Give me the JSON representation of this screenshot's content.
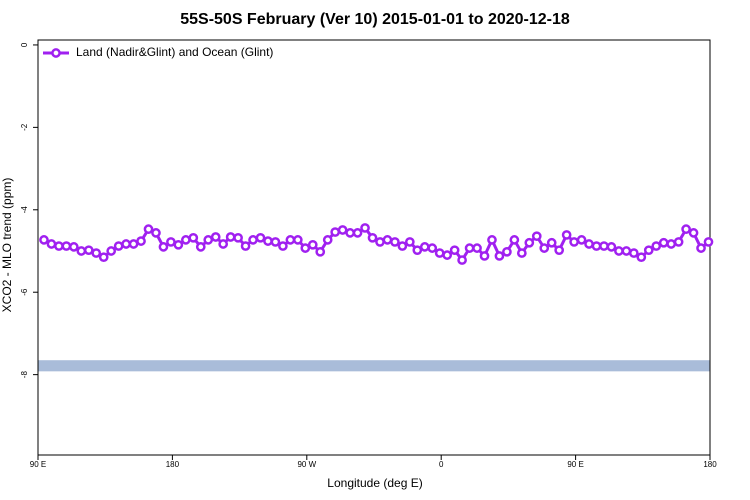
{
  "chart_data": {
    "type": "line",
    "title": "55S-50S February (Ver 10)   2015-01-01 to 2020-12-18",
    "x_label": "Longitude (deg E)",
    "y_label": "XCO2 - MLO trend (ppm)",
    "x": [
      94,
      99,
      104,
      109,
      114,
      119,
      124,
      129,
      134,
      139,
      144,
      149,
      154,
      159,
      164,
      169,
      174,
      179,
      184,
      189,
      194,
      199,
      204,
      209,
      214,
      219,
      224,
      229,
      234,
      239,
      244,
      249,
      254,
      259,
      264,
      269,
      274,
      279,
      284,
      289,
      294,
      299,
      304,
      309,
      314,
      319,
      324,
      329,
      334,
      339,
      344,
      349,
      354,
      359,
      364,
      369,
      374,
      379,
      384,
      389,
      394,
      399,
      404,
      409,
      414,
      419,
      424,
      429,
      434,
      439,
      444,
      449,
      454,
      459,
      464,
      469,
      474,
      479,
      484,
      489,
      494,
      499,
      504,
      509,
      514,
      519,
      524,
      529,
      534,
      539
    ],
    "series": [
      {
        "name": "Land (Nadir&Glint) and Ocean (Glint)",
        "color": "#a020f0",
        "values": [
          -4.73,
          -4.83,
          -4.88,
          -4.88,
          -4.9,
          -5.0,
          -4.98,
          -5.05,
          -5.15,
          -5.0,
          -4.88,
          -4.83,
          -4.83,
          -4.76,
          -4.47,
          -4.56,
          -4.9,
          -4.78,
          -4.85,
          -4.73,
          -4.68,
          -4.9,
          -4.73,
          -4.66,
          -4.83,
          -4.66,
          -4.68,
          -4.88,
          -4.73,
          -4.68,
          -4.76,
          -4.78,
          -4.88,
          -4.73,
          -4.73,
          -4.93,
          -4.85,
          -5.02,
          -4.73,
          -4.54,
          -4.49,
          -4.56,
          -4.56,
          -4.44,
          -4.68,
          -4.78,
          -4.73,
          -4.78,
          -4.88,
          -4.78,
          -4.98,
          -4.9,
          -4.93,
          -5.05,
          -5.1,
          -4.98,
          -5.22,
          -4.93,
          -4.93,
          -5.12,
          -4.73,
          -5.12,
          -5.02,
          -4.73,
          -5.05,
          -4.8,
          -4.64,
          -4.93,
          -4.8,
          -4.98,
          -4.61,
          -4.78,
          -4.73,
          -4.83,
          -4.88,
          -4.88,
          -4.9,
          -5.0,
          -5.0,
          -5.05,
          -5.15,
          -4.98,
          -4.88,
          -4.8,
          -4.83,
          -4.78,
          -4.47,
          -4.56,
          -4.93,
          -4.78
        ]
      }
    ],
    "band": {
      "ymin": -7.92,
      "ymax": -7.65,
      "color": "#a9bcd9"
    },
    "xlim": [
      90,
      540
    ],
    "ylim": [
      -9.95,
      0.12
    ],
    "xticks": [
      {
        "value": 90,
        "label": "90 E"
      },
      180,
      {
        "value": 270,
        "label": "90 W"
      },
      {
        "value": 360,
        "label": "0"
      },
      {
        "value": 450,
        "label": "90 E"
      },
      {
        "value": 540,
        "label": "180"
      }
    ],
    "yticks": [
      0,
      -2,
      -4,
      -6,
      -8
    ],
    "legend": "top-left"
  }
}
